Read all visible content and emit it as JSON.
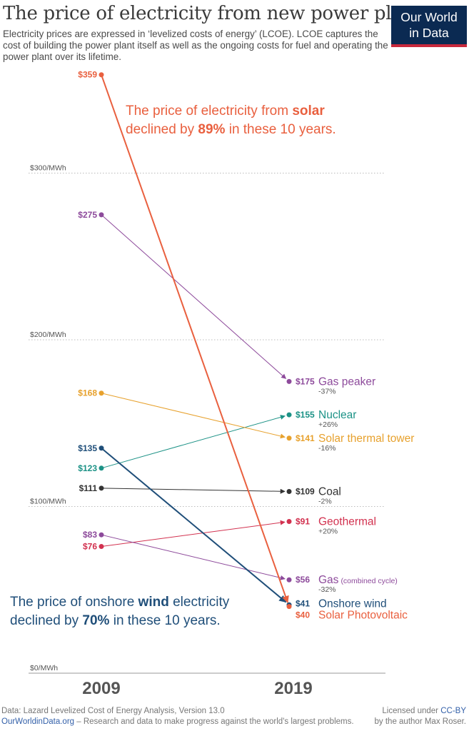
{
  "header": {
    "title": "The price of electricity from new power plants",
    "subtitle": "Electricity prices are expressed in ‘levelized costs of energy’ (LCOE). LCOE captures the cost of building the power plant itself as well as the ongoing costs for fuel and operating the power plant over its lifetime.",
    "logo_line1": "Our World",
    "logo_line2": "in Data"
  },
  "chart_data": {
    "type": "line",
    "title": "The price of electricity from new power plants",
    "x": [
      "2009",
      "2019"
    ],
    "ylim": [
      0,
      370
    ],
    "yticks": [
      {
        "value": 0,
        "label": "$0/MWh"
      },
      {
        "value": 100,
        "label": "$100/MWh"
      },
      {
        "value": 200,
        "label": "$200/MWh"
      },
      {
        "value": 300,
        "label": "$300/MWh"
      }
    ],
    "series": [
      {
        "name": "Gas peaker",
        "start": 275,
        "end": 175,
        "start_label": "$275",
        "end_label": "$175",
        "change": "-37%",
        "color": "#8d4a9b"
      },
      {
        "name": "Nuclear",
        "start": 123,
        "end": 155,
        "start_label": "$123",
        "end_label": "$155",
        "change": "+26%",
        "color": "#1c9286"
      },
      {
        "name": "Solar thermal tower",
        "start": 168,
        "end": 141,
        "start_label": "$168",
        "end_label": "$141",
        "change": "-16%",
        "color": "#e7a12d"
      },
      {
        "name": "Coal",
        "start": 111,
        "end": 109,
        "start_label": "$111",
        "end_label": "$109",
        "change": "-2%",
        "color": "#333333"
      },
      {
        "name": "Geothermal",
        "start": 76,
        "end": 91,
        "start_label": "$76",
        "end_label": "$91",
        "change": "+20%",
        "color": "#d2314f"
      },
      {
        "name": "Gas",
        "name_suffix": "(combined cycle)",
        "start": 83,
        "end": 56,
        "start_label": "$83",
        "end_label": "$56",
        "change": "-32%",
        "color": "#8d4a9b"
      },
      {
        "name": "Onshore wind",
        "start": 135,
        "end": 41,
        "start_label": "$135",
        "end_label": "$41",
        "change": "",
        "color": "#1f4e79"
      },
      {
        "name": "Solar Photovoltaic",
        "start": 359,
        "end": 40,
        "start_label": "$359",
        "end_label": "$40",
        "change": "",
        "color": "#e9603f"
      }
    ],
    "annotations": {
      "solar": {
        "pre": "The price of electricity from ",
        "bold1": "solar",
        "mid": "declined by ",
        "bold2": "89%",
        "post": " in these 10 years.",
        "color": "#e9603f"
      },
      "wind": {
        "pre": "The price of onshore ",
        "bold1": "wind",
        "post1": " electricity",
        "mid": "declined by ",
        "bold2": "70%",
        "post": " in these 10 years.",
        "color": "#1f4e79"
      }
    }
  },
  "footer": {
    "source": "Data: Lazard Levelized Cost of Energy Analysis, Version 13.0",
    "site": "OurWorldinData.org",
    "site_tagline": " – Research and data to make progress against the world's largest problems.",
    "license_pre": "Licensed under ",
    "license": "CC-BY",
    "author": "by the author Max Roser."
  }
}
